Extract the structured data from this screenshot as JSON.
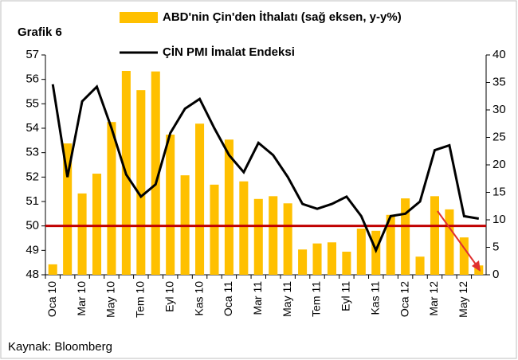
{
  "chart_data": {
    "type": "bar_line",
    "title": "Grafik 6",
    "source": "Kaynak: Bloomberg",
    "categories": [
      "Oca 10",
      null,
      "Mar 10",
      null,
      "May 10",
      null,
      "Tem 10",
      null,
      "Eyl 10",
      null,
      "Kas 10",
      null,
      "Oca 11",
      null,
      "Mar 11",
      null,
      "May 11",
      null,
      "Tem 11",
      null,
      "Eyl 11",
      null,
      "Kas 11",
      null,
      "Oca 12",
      null,
      "Mar 12",
      null,
      "May 12",
      null
    ],
    "series": [
      {
        "name": "ABD'nin Çin'den İthalatı (sağ eksen, y-y%)",
        "type": "bar",
        "axis": "y2",
        "color": "#ffc000",
        "values": [
          1.9,
          23.9,
          14.8,
          18.4,
          27.8,
          37.1,
          33.6,
          37.0,
          25.5,
          18.1,
          27.5,
          16.4,
          24.6,
          17.0,
          13.8,
          14.3,
          13.0,
          4.6,
          5.7,
          5.9,
          4.2,
          8.4,
          8.0,
          10.9,
          13.9,
          3.3,
          14.3,
          11.9,
          6.8,
          1.7
        ]
      },
      {
        "name": "ÇİN PMI İmalat Endeksi",
        "type": "line",
        "color": "#000000",
        "values": [
          55.8,
          52.0,
          55.1,
          55.7,
          54.0,
          52.1,
          51.2,
          51.7,
          53.8,
          54.8,
          55.2,
          54.0,
          52.9,
          52.2,
          53.4,
          52.9,
          52.0,
          50.9,
          50.7,
          50.9,
          51.2,
          50.4,
          49.0,
          50.4,
          50.5,
          51.0,
          53.1,
          53.3,
          50.4,
          50.3
        ]
      }
    ],
    "ylim": [
      48,
      57
    ],
    "yticks": [
      48,
      49,
      50,
      51,
      52,
      53,
      54,
      55,
      56,
      57
    ],
    "y2lim": [
      0,
      40
    ],
    "y2ticks": [
      0,
      5,
      10,
      15,
      20,
      25,
      30,
      35,
      40
    ],
    "reference_line": {
      "value": 50,
      "color": "#c00000"
    }
  }
}
